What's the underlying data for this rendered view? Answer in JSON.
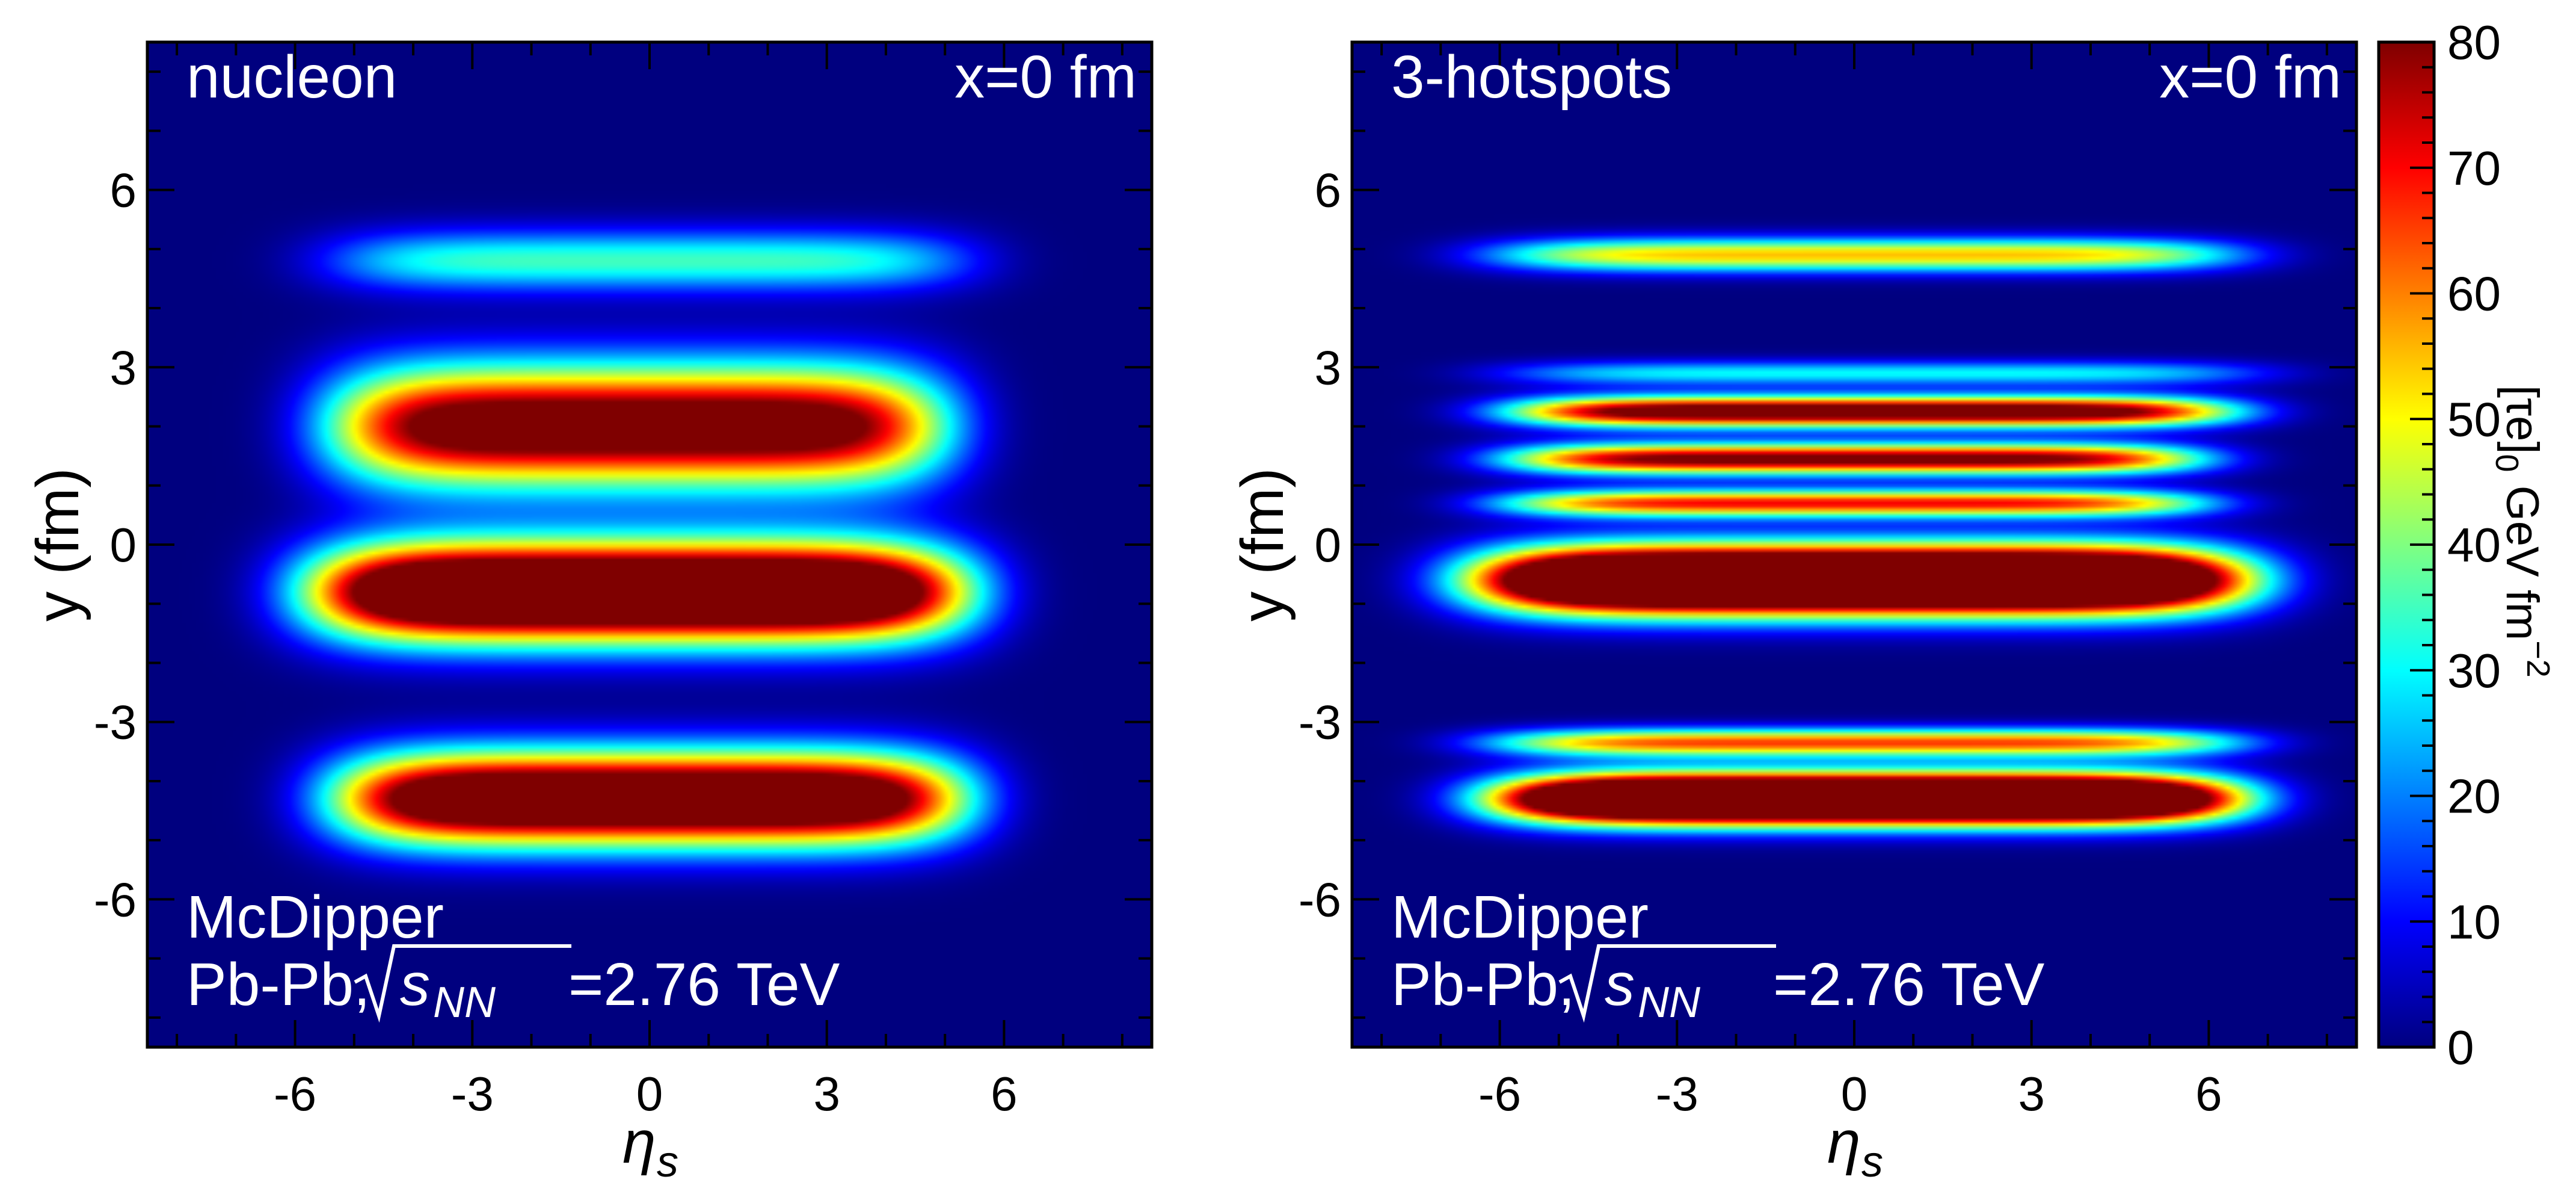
{
  "chart_data": [
    {
      "type": "heatmap",
      "panel_label": "nucleon",
      "position_label": "x=0 fm",
      "generator": "McDipper",
      "system_prefix": "Pb-Pb,",
      "energy_suffix": "=2.76 TeV",
      "xlabel": "η",
      "xlabel_sub": "s",
      "ylabel": "y (fm)",
      "xlim": [
        -8.5,
        8.5
      ],
      "ylim": [
        -8.5,
        8.5
      ],
      "xticks": [
        -6,
        -3,
        0,
        3,
        6
      ],
      "yticks": [
        -6,
        -3,
        0,
        3,
        6
      ],
      "blobs": [
        {
          "eta_center": 0.0,
          "y_center": 4.8,
          "eta_half_width": 4.8,
          "y_half_width": 0.55,
          "peak": 35
        },
        {
          "eta_center": -0.2,
          "y_center": 2.0,
          "eta_half_width": 4.6,
          "y_half_width": 1.1,
          "peak": 95
        },
        {
          "eta_center": -0.2,
          "y_center": -0.8,
          "eta_half_width": 4.9,
          "y_half_width": 0.9,
          "peak": 125
        },
        {
          "eta_center": 0.0,
          "y_center": -4.3,
          "eta_half_width": 4.7,
          "y_half_width": 0.85,
          "peak": 110
        }
      ]
    },
    {
      "type": "heatmap",
      "panel_label": "3-hotspots",
      "position_label": "x=0 fm",
      "generator": "McDipper",
      "system_prefix": "Pb-Pb,",
      "energy_suffix": "=2.76 TeV",
      "xlabel": "η",
      "xlabel_sub": "s",
      "ylabel": "y (fm)",
      "xlim": [
        -8.5,
        8.5
      ],
      "ylim": [
        -8.5,
        8.5
      ],
      "xticks": [
        -6,
        -3,
        0,
        3,
        6
      ],
      "yticks": [
        -6,
        -3,
        0,
        3,
        6
      ],
      "blobs": [
        {
          "eta_center": 0.2,
          "y_center": 4.9,
          "eta_half_width": 5.6,
          "y_half_width": 0.3,
          "peak": 55
        },
        {
          "eta_center": 0.5,
          "y_center": 2.9,
          "eta_half_width": 5.7,
          "y_half_width": 0.22,
          "peak": 30
        },
        {
          "eta_center": 0.3,
          "y_center": 2.25,
          "eta_half_width": 5.4,
          "y_half_width": 0.28,
          "peak": 95
        },
        {
          "eta_center": 0.0,
          "y_center": 1.45,
          "eta_half_width": 5.2,
          "y_half_width": 0.28,
          "peak": 85
        },
        {
          "eta_center": 0.0,
          "y_center": 0.7,
          "eta_half_width": 5.3,
          "y_half_width": 0.25,
          "peak": 70
        },
        {
          "eta_center": 0.1,
          "y_center": -0.6,
          "eta_half_width": 5.7,
          "y_half_width": 0.6,
          "peak": 160
        },
        {
          "eta_center": 0.2,
          "y_center": -3.35,
          "eta_half_width": 5.6,
          "y_half_width": 0.25,
          "peak": 65
        },
        {
          "eta_center": 0.2,
          "y_center": -4.3,
          "eta_half_width": 5.5,
          "y_half_width": 0.45,
          "peak": 160
        }
      ]
    }
  ],
  "colorbar": {
    "min": 0,
    "max": 80,
    "ticks": [
      0,
      10,
      20,
      30,
      40,
      50,
      60,
      70,
      80
    ],
    "label": "[τe]",
    "label_sub": "0",
    "label_units": "GeV fm",
    "label_sup": "−2",
    "stops": [
      "#00007f",
      "#0000ff",
      "#0080ff",
      "#00ffff",
      "#80ff80",
      "#ffff00",
      "#ff8000",
      "#ff0000",
      "#7f0000"
    ]
  }
}
